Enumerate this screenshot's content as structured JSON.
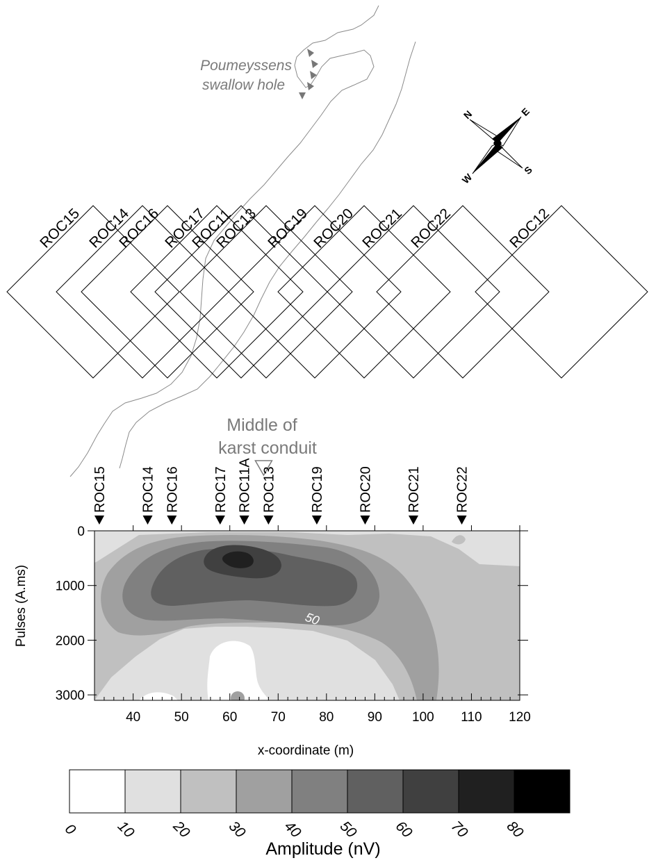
{
  "swallow_hole_label": [
    "Poumeyssens",
    "swallow hole"
  ],
  "compass": {
    "n": "N",
    "e": "E",
    "s": "S",
    "w": "W"
  },
  "loops": [
    "ROC15",
    "ROC14",
    "ROC16",
    "ROC17",
    "ROC11",
    "ROC13",
    "ROC19",
    "ROC20",
    "ROC21",
    "ROC22",
    "ROC12"
  ],
  "conduit_label": [
    "Middle of",
    "karst conduit"
  ],
  "chart_data": {
    "type": "heatmap",
    "xlabel": "x-coordinate (m)",
    "ylabel": "Pulses (A.ms)",
    "x_ticks": [
      40,
      50,
      60,
      70,
      80,
      90,
      100,
      110,
      120
    ],
    "y_ticks": [
      0,
      1000,
      2000,
      3000
    ],
    "xlim": [
      32,
      120
    ],
    "ylim": [
      0,
      3100
    ],
    "sounding_markers": [
      {
        "name": "ROC15",
        "x": 33
      },
      {
        "name": "ROC14",
        "x": 43
      },
      {
        "name": "ROC16",
        "x": 48
      },
      {
        "name": "ROC17",
        "x": 58
      },
      {
        "name": "ROC11A",
        "x": 63
      },
      {
        "name": "ROC13",
        "x": 68
      },
      {
        "name": "ROC19",
        "x": 78
      },
      {
        "name": "ROC20",
        "x": 88
      },
      {
        "name": "ROC21",
        "x": 98
      },
      {
        "name": "ROC22",
        "x": 108
      }
    ],
    "conduit_middle_x": 67,
    "contour_label": "50",
    "colorbar": {
      "title": "Amplitude (nV)",
      "ticks": [
        0,
        10,
        20,
        30,
        40,
        50,
        60,
        70,
        80
      ],
      "colors": [
        "#ffffff",
        "#e0e0e0",
        "#c0c0c0",
        "#a0a0a0",
        "#808080",
        "#606060",
        "#404040",
        "#202020",
        "#000000"
      ]
    }
  }
}
